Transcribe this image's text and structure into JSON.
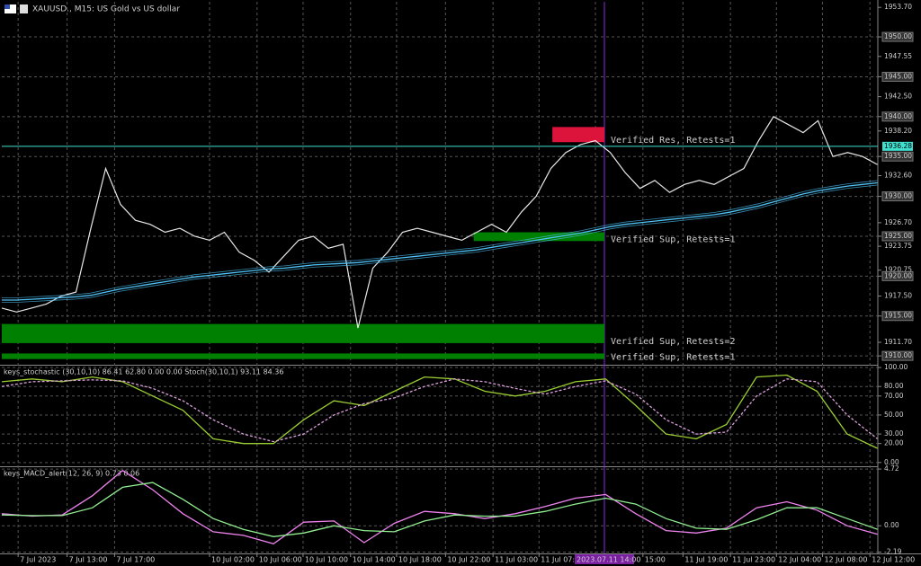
{
  "chart_data": [
    {
      "type": "line",
      "title": "XAUUSD., M15: US Gold vs US dollar",
      "xlim": [
        0,
        59
      ],
      "xticks": [
        {
          "value": 1.1,
          "label": "7 Jul 2023"
        },
        {
          "value": 4.4,
          "label": "7 Jul 13:00"
        },
        {
          "value": 7.6,
          "label": "7 Jul 17:00"
        },
        {
          "value": 14,
          "label": "10 Jul 02:00"
        },
        {
          "value": 17.2,
          "label": "10 Jul 06:00"
        },
        {
          "value": 20.3,
          "label": "10 Jul 10:00"
        },
        {
          "value": 23.5,
          "label": "10 Jul 14:00"
        },
        {
          "value": 26.6,
          "label": "10 Jul 18:00"
        },
        {
          "value": 29.9,
          "label": "10 Jul 22:00"
        },
        {
          "value": 33.1,
          "label": "11 Jul 03:00"
        },
        {
          "value": 36.2,
          "label": "11 Jul 07:00"
        },
        {
          "value": 40,
          "label": "2023.07.11 14:00"
        },
        {
          "value": 43.2,
          "label": "15:00"
        },
        {
          "value": 45.9,
          "label": "11 Jul 19:00"
        },
        {
          "value": 49.1,
          "label": "11 Jul 23:00"
        },
        {
          "value": 52.2,
          "label": "12 Jul 04:00"
        },
        {
          "value": 55.3,
          "label": "12 Jul 08:00"
        },
        {
          "value": 58.5,
          "label": "12 Jul 12:00"
        }
      ],
      "ylim": [
        1909,
        1954.4
      ],
      "yticks": [
        {
          "value": 1953.7,
          "label": "1953.70"
        },
        {
          "value": 1950,
          "label": "1950.00"
        },
        {
          "value": 1947.55,
          "label": "1947.55"
        },
        {
          "value": 1945,
          "label": "1945.00"
        },
        {
          "value": 1942.5,
          "label": "1942.50"
        },
        {
          "value": 1940,
          "label": "1940.00"
        },
        {
          "value": 1938.2,
          "label": "1938.20"
        },
        {
          "value": 1935,
          "label": "1935.00"
        },
        {
          "value": 1932.6,
          "label": "1932.60"
        },
        {
          "value": 1930,
          "label": "1930.00"
        },
        {
          "value": 1926.7,
          "label": "1926.70"
        },
        {
          "value": 1925,
          "label": "1925.00"
        },
        {
          "value": 1923.75,
          "label": "1923.75"
        },
        {
          "value": 1920.75,
          "label": "1920.75"
        },
        {
          "value": 1920,
          "label": "1920.00"
        },
        {
          "value": 1917.5,
          "label": "1917.50"
        },
        {
          "value": 1915,
          "label": "1915.00"
        },
        {
          "value": 1911.7,
          "label": "1911.70"
        },
        {
          "value": 1910,
          "label": "1910.00"
        }
      ],
      "current_price": {
        "value": 1936.28,
        "label": "1936.28"
      },
      "zones": [
        {
          "label": "Verified Res, Retests=1",
          "from": 1936.8,
          "to": 1938.7,
          "start": 37.1,
          "color": "#dc143c"
        },
        {
          "label": "Verified Sup, Retests=1",
          "from": 1924.4,
          "to": 1925.5,
          "start": 31.8,
          "color": "#008000"
        },
        {
          "label": "Verified Sup, Retests=2",
          "from": 1911.6,
          "to": 1914,
          "start": 0,
          "color": "#008000"
        },
        {
          "label": "Verified Sup, Retests=1",
          "from": 1909.6,
          "to": 1910.3,
          "start": 0,
          "color": "#008000"
        }
      ],
      "series": [
        {
          "name": "XAUUSD.",
          "color": "#e8e8e8",
          "values": [
            1916,
            1915.5,
            1916,
            1916.5,
            1917.5,
            1918,
            1926,
            1933.5,
            1929,
            1927,
            1926.5,
            1925.5,
            1926,
            1925,
            1924.5,
            1925.5,
            1923,
            1922,
            1920.5,
            1922.5,
            1924.5,
            1925,
            1923.5,
            1924,
            1913.5,
            1921,
            1923,
            1925.5,
            1926,
            1925.5,
            1925,
            1924.5,
            1925.5,
            1926.5,
            1925.5,
            1928,
            1930,
            1933.5,
            1935.5,
            1936.5,
            1937,
            1935.5,
            1933,
            1931,
            1932,
            1930.5,
            1931.5,
            1932,
            1931.5,
            1932.5,
            1933.5,
            1937,
            1940,
            1939,
            1938,
            1939.5,
            1935,
            1935.5,
            1935,
            1934
          ]
        },
        {
          "name": "MA",
          "color": "#4fc3f7",
          "values": [
            1917,
            1917,
            1917.1,
            1917.2,
            1917.3,
            1917.4,
            1917.6,
            1918,
            1918.4,
            1918.7,
            1919,
            1919.3,
            1919.6,
            1919.9,
            1920.1,
            1920.3,
            1920.5,
            1920.7,
            1920.9,
            1921,
            1921.2,
            1921.4,
            1921.5,
            1921.6,
            1921.7,
            1921.9,
            1922.1,
            1922.3,
            1922.5,
            1922.7,
            1922.9,
            1923.1,
            1923.3,
            1923.6,
            1923.9,
            1924.2,
            1924.5,
            1924.8,
            1925.1,
            1925.4,
            1925.8,
            1926.2,
            1926.5,
            1926.7,
            1926.9,
            1927.1,
            1927.3,
            1927.5,
            1927.7,
            1928,
            1928.4,
            1928.8,
            1929.3,
            1929.8,
            1930.3,
            1930.7,
            1931,
            1931.3,
            1931.5,
            1931.7
          ]
        }
      ]
    },
    {
      "type": "line",
      "title": "keys_stochastic (30,10,10) 86.41 62.80 0.00 0.00 Stoch(30,10,1) 93.11 84.36",
      "xlim": [
        0,
        29
      ],
      "ylim": [
        -3,
        101
      ],
      "yticks": [
        {
          "value": 100,
          "label": "100.00"
        },
        {
          "value": 80,
          "label": "80.00"
        },
        {
          "value": 70,
          "label": "70.00"
        },
        {
          "value": 50,
          "label": "50.00"
        },
        {
          "value": 30,
          "label": "30.00"
        },
        {
          "value": 20,
          "label": "20.00"
        },
        {
          "value": 0,
          "label": "0.00"
        }
      ],
      "series": [
        {
          "name": "Main",
          "color": "#9acd32",
          "values": [
            85,
            88,
            85,
            90,
            85,
            70,
            55,
            25,
            20,
            20,
            45,
            65,
            60,
            75,
            90,
            88,
            75,
            70,
            75,
            85,
            88,
            60,
            30,
            25,
            40,
            90,
            92,
            75,
            30,
            15
          ]
        },
        {
          "name": "Signal",
          "color": "#dda0dd",
          "dashed": true,
          "values": [
            80,
            85,
            86,
            87,
            86,
            78,
            65,
            45,
            30,
            22,
            30,
            50,
            62,
            68,
            80,
            88,
            85,
            78,
            72,
            80,
            86,
            72,
            45,
            30,
            32,
            70,
            88,
            85,
            50,
            25
          ]
        }
      ]
    },
    {
      "type": "line",
      "title": "keys_MACD_alert(12, 26, 9) 0.73 0.06",
      "xlim": [
        0,
        29
      ],
      "ylim": [
        -2.3,
        4.8
      ],
      "yticks": [
        4.72,
        {
          "value": 0,
          "label": "0.00"
        },
        -2.19
      ],
      "series": [
        {
          "name": "MACD",
          "color": "#ee82ee",
          "values": [
            1,
            0.8,
            0.9,
            2.5,
            4.6,
            3,
            1,
            -0.5,
            -0.8,
            -1.5,
            0.3,
            0.4,
            -1.4,
            0.2,
            1.2,
            1,
            0.6,
            1,
            1.6,
            2.3,
            2.6,
            1,
            -0.4,
            -0.6,
            -0.2,
            1.5,
            2,
            1.3,
            0,
            -0.7
          ]
        },
        {
          "name": "Signal",
          "color": "#90ee90",
          "values": [
            0.9,
            0.85,
            0.85,
            1.5,
            3.2,
            3.6,
            2.2,
            0.6,
            -0.3,
            -0.9,
            -0.6,
            0,
            -0.4,
            -0.5,
            0.4,
            0.9,
            0.8,
            0.8,
            1.2,
            1.8,
            2.3,
            1.8,
            0.6,
            -0.2,
            -0.3,
            0.5,
            1.5,
            1.5,
            0.6,
            -0.3
          ]
        }
      ]
    }
  ]
}
